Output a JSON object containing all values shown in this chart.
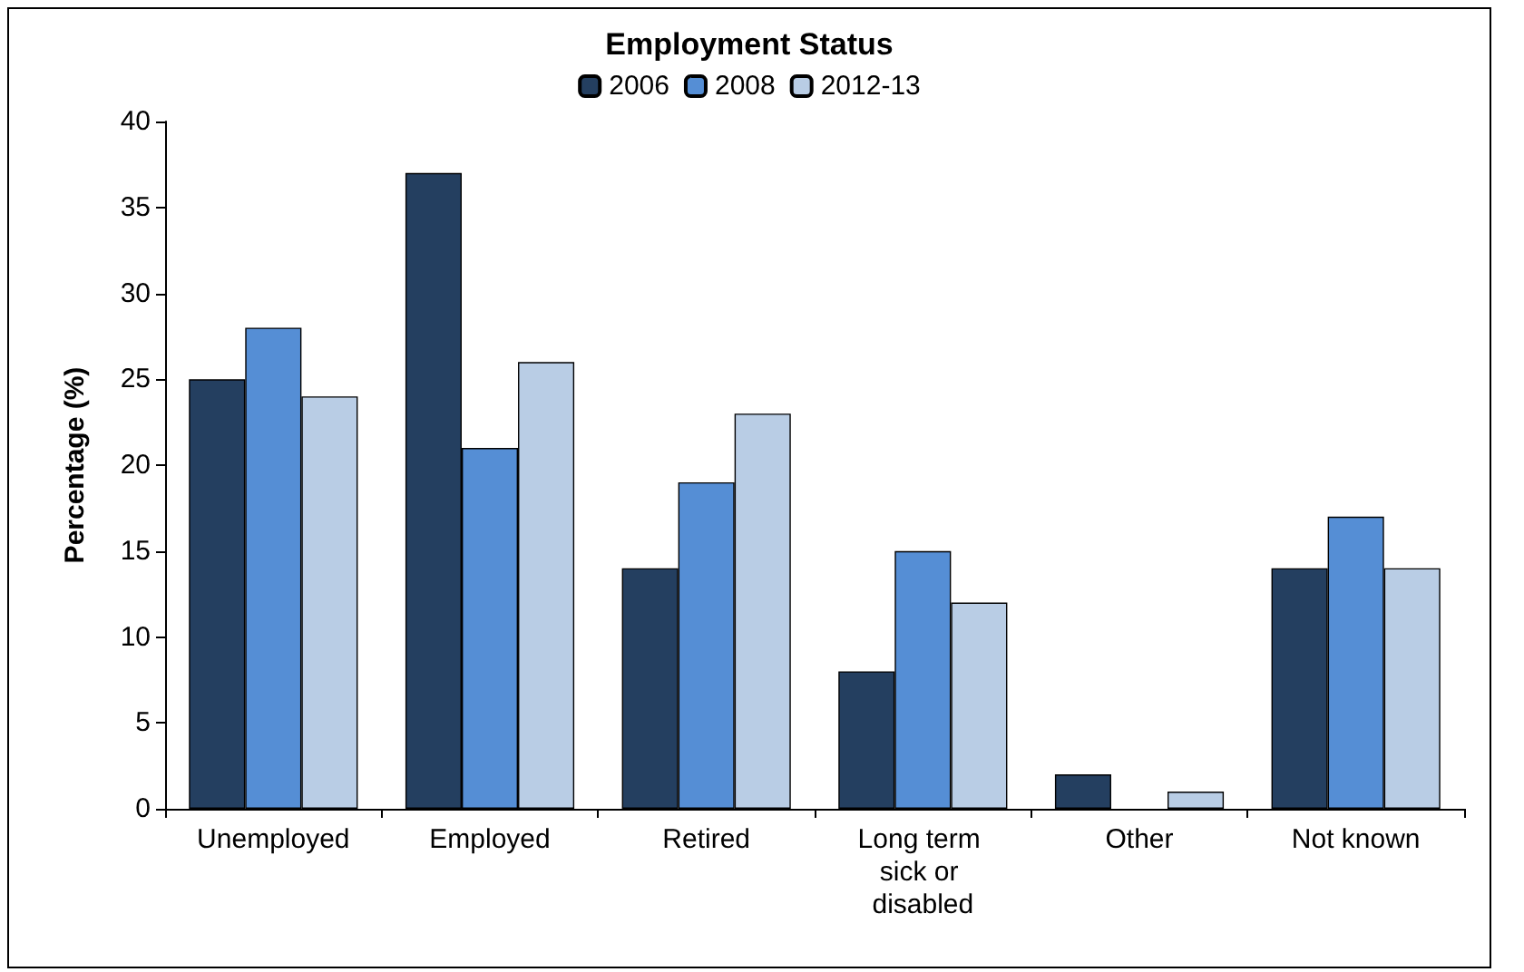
{
  "chart_data": {
    "type": "bar",
    "title": "Employment Status",
    "ylabel": "Percentage (%)",
    "categories": [
      "Unemployed",
      "Employed",
      "Retired",
      "Long term sick or disabled",
      "Other",
      "Not known"
    ],
    "series": [
      {
        "name": "2006",
        "color": "#243f60",
        "values": [
          25,
          37,
          14,
          8,
          2,
          14
        ]
      },
      {
        "name": "2008",
        "color": "#558ed5",
        "values": [
          28,
          21,
          19,
          15,
          null,
          17
        ]
      },
      {
        "name": "2012-13",
        "color": "#b9cde5",
        "values": [
          24,
          26,
          23,
          12,
          1,
          14
        ]
      }
    ],
    "ylim": [
      0,
      40
    ],
    "yticks": [
      0,
      5,
      10,
      15,
      20,
      25,
      30,
      35,
      40
    ],
    "grid": false,
    "legend": "top"
  }
}
